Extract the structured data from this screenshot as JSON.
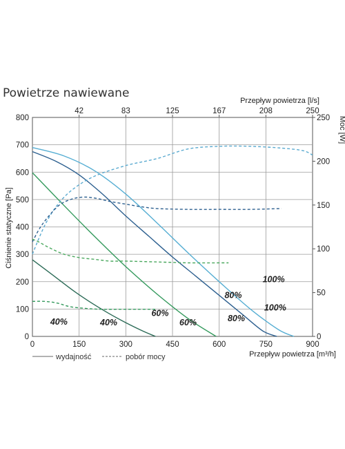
{
  "chart_data": {
    "type": "line",
    "title": "Powietrze nawiewane",
    "xlabel": "Przepływ powietrza [m³/h]",
    "x2label": "Przepływ powietrza [l/s]",
    "ylabel": "Ciśnienie statyczne [Pa]",
    "y2label": "Moc [W]",
    "xlim": [
      0,
      900
    ],
    "ylim": [
      0,
      800
    ],
    "y2lim": [
      0,
      250
    ],
    "x_ticks": [
      "0",
      "150",
      "300",
      "450",
      "600",
      "750",
      "900"
    ],
    "y_ticks": [
      "0",
      "100",
      "200",
      "300",
      "400",
      "500",
      "600",
      "700",
      "800"
    ],
    "y2_ticks": [
      "0",
      "50",
      "100",
      "150",
      "200",
      "250"
    ],
    "x2_ticks": [
      {
        "label": "42",
        "value": 150
      },
      {
        "label": "83",
        "value": 300
      },
      {
        "label": "125",
        "value": 450
      },
      {
        "label": "167",
        "value": 600
      },
      {
        "label": "208",
        "value": 750
      },
      {
        "label": "250",
        "value": 900
      }
    ],
    "grid": true,
    "legend": [
      {
        "label": "wydajność",
        "style": "solid"
      },
      {
        "label": "pobór mocy",
        "style": "dashed"
      }
    ],
    "series": [
      {
        "label": "100%",
        "axis": "pressure",
        "color": "#56aed3",
        "dashed": false,
        "x": [
          0,
          100,
          200,
          300,
          400,
          500,
          600,
          700,
          790,
          840
        ],
        "y": [
          690,
          660,
          605,
          520,
          415,
          305,
          200,
          100,
          25,
          0
        ]
      },
      {
        "label": "80%",
        "axis": "pressure",
        "color": "#2c5f8f",
        "dashed": false,
        "x": [
          0,
          75,
          150,
          225,
          300,
          375,
          450,
          525,
          600,
          675,
          740,
          785
        ],
        "y": [
          675,
          640,
          590,
          520,
          440,
          365,
          290,
          220,
          150,
          80,
          20,
          0
        ]
      },
      {
        "label": "60%",
        "axis": "pressure",
        "color": "#33995c",
        "dashed": false,
        "x": [
          0,
          100,
          200,
          300,
          400,
          500,
          590
        ],
        "y": [
          598,
          480,
          365,
          255,
          155,
          65,
          0
        ]
      },
      {
        "label": "40%",
        "axis": "pressure",
        "color": "#2c6b57",
        "dashed": false,
        "x": [
          0,
          70,
          140,
          210,
          280,
          350,
          395
        ],
        "y": [
          280,
          220,
          160,
          108,
          62,
          22,
          0
        ]
      },
      {
        "label": "100%",
        "axis": "power",
        "color": "#5aaad0",
        "dashed": true,
        "x": [
          0,
          40,
          80,
          130,
          200,
          300,
          400,
          500,
          600,
          700,
          800,
          870,
          900
        ],
        "y": [
          94,
          127,
          150,
          168,
          183,
          195,
          203,
          214,
          217,
          217,
          215,
          212,
          207
        ]
      },
      {
        "label": "80%",
        "axis": "power",
        "color": "#2c5f8f",
        "dashed": true,
        "x": [
          0,
          30,
          80,
          120,
          160,
          200,
          250,
          300,
          350,
          400,
          500,
          600,
          700,
          800
        ],
        "y": [
          108,
          127,
          148,
          156,
          159,
          158,
          154,
          151,
          148,
          146,
          145,
          145,
          145,
          146
        ]
      },
      {
        "label": "60%",
        "axis": "power",
        "color": "#4aa85e",
        "dashed": true,
        "x": [
          0,
          20,
          50,
          100,
          150,
          200,
          250,
          300,
          400,
          500,
          600,
          630
        ],
        "y": [
          111,
          108,
          102,
          94,
          90,
          88,
          86,
          86,
          85,
          84,
          84,
          84
        ]
      },
      {
        "label": "40%",
        "axis": "power",
        "color": "#33995c",
        "dashed": true,
        "x": [
          0,
          40,
          80,
          120,
          170,
          220,
          280,
          340,
          400
        ],
        "y": [
          40,
          40,
          38,
          34,
          32,
          31,
          31,
          31,
          31
        ]
      }
    ],
    "curve_labels": [
      {
        "text": "100%",
        "x": 780,
        "y": 95
      },
      {
        "text": "80%",
        "x": 655,
        "y": 55
      },
      {
        "text": "60%",
        "x": 500,
        "y": 40
      },
      {
        "text": "40%",
        "x": 245,
        "y": 40
      },
      {
        "text": "100%",
        "x": 775,
        "y": 198
      },
      {
        "text": "80%",
        "x": 645,
        "y": 140
      },
      {
        "text": "60%",
        "x": 410,
        "y": 74
      },
      {
        "text": "40%",
        "x": 85,
        "y": 43
      }
    ]
  }
}
